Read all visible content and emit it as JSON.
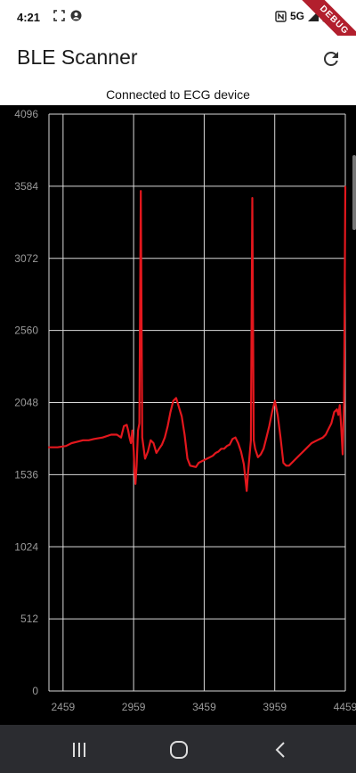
{
  "status_bar": {
    "time": "4:21",
    "network": "5G"
  },
  "debug_banner": "DEBUG",
  "app_bar": {
    "title": "BLE Scanner",
    "refresh_icon": "refresh-icon"
  },
  "connection_status": "Connected to ECG device",
  "chart_data": {
    "type": "line",
    "title": "",
    "xlabel": "",
    "ylabel": "",
    "xlim": [
      2359,
      4459
    ],
    "ylim": [
      0,
      4096
    ],
    "x_ticks": [
      "2459",
      "2959",
      "3459",
      "3959",
      "4459"
    ],
    "y_ticks": [
      "0",
      "512",
      "1024",
      "1536",
      "2048",
      "2560",
      "3072",
      "3584",
      "4096"
    ],
    "grid": true,
    "series": [
      {
        "color": "#e3171d",
        "x": [
          2359,
          2420,
          2480,
          2520,
          2560,
          2600,
          2640,
          2680,
          2740,
          2800,
          2840,
          2870,
          2890,
          2910,
          2920,
          2930,
          2940,
          2950,
          2960,
          2965,
          2972,
          2980,
          2990,
          3000,
          3010,
          3020,
          3040,
          3060,
          3080,
          3100,
          3120,
          3140,
          3160,
          3180,
          3200,
          3220,
          3240,
          3260,
          3300,
          3320,
          3340,
          3360,
          3400,
          3420,
          3460,
          3500,
          3520,
          3540,
          3560,
          3580,
          3600,
          3620,
          3640,
          3660,
          3680,
          3700,
          3720,
          3740,
          3760,
          3770,
          3790,
          3800,
          3810,
          3820,
          3840,
          3860,
          3880,
          3900,
          3920,
          3940,
          3960,
          3980,
          4000,
          4020,
          4040,
          4060,
          4100,
          4140,
          4180,
          4220,
          4260,
          4300,
          4320,
          4340,
          4360,
          4380,
          4400,
          4410,
          4420,
          4430,
          4440,
          4450,
          4459
        ],
        "y": [
          1730,
          1730,
          1740,
          1760,
          1770,
          1780,
          1780,
          1790,
          1800,
          1820,
          1820,
          1800,
          1880,
          1890,
          1850,
          1800,
          1760,
          1850,
          1700,
          1560,
          1470,
          1600,
          1850,
          1900,
          3550,
          1800,
          1650,
          1700,
          1780,
          1760,
          1690,
          1720,
          1750,
          1800,
          1880,
          1980,
          2060,
          2080,
          1950,
          1820,
          1650,
          1600,
          1590,
          1620,
          1640,
          1660,
          1670,
          1690,
          1700,
          1720,
          1720,
          1740,
          1750,
          1790,
          1800,
          1760,
          1700,
          1610,
          1420,
          1550,
          1780,
          3500,
          1780,
          1720,
          1660,
          1680,
          1720,
          1800,
          1880,
          1980,
          2060,
          1960,
          1800,
          1620,
          1600,
          1600,
          1640,
          1680,
          1720,
          1760,
          1780,
          1800,
          1820,
          1860,
          1900,
          1980,
          2000,
          1960,
          2030,
          1870,
          1680,
          2060,
          3580
        ]
      }
    ]
  }
}
